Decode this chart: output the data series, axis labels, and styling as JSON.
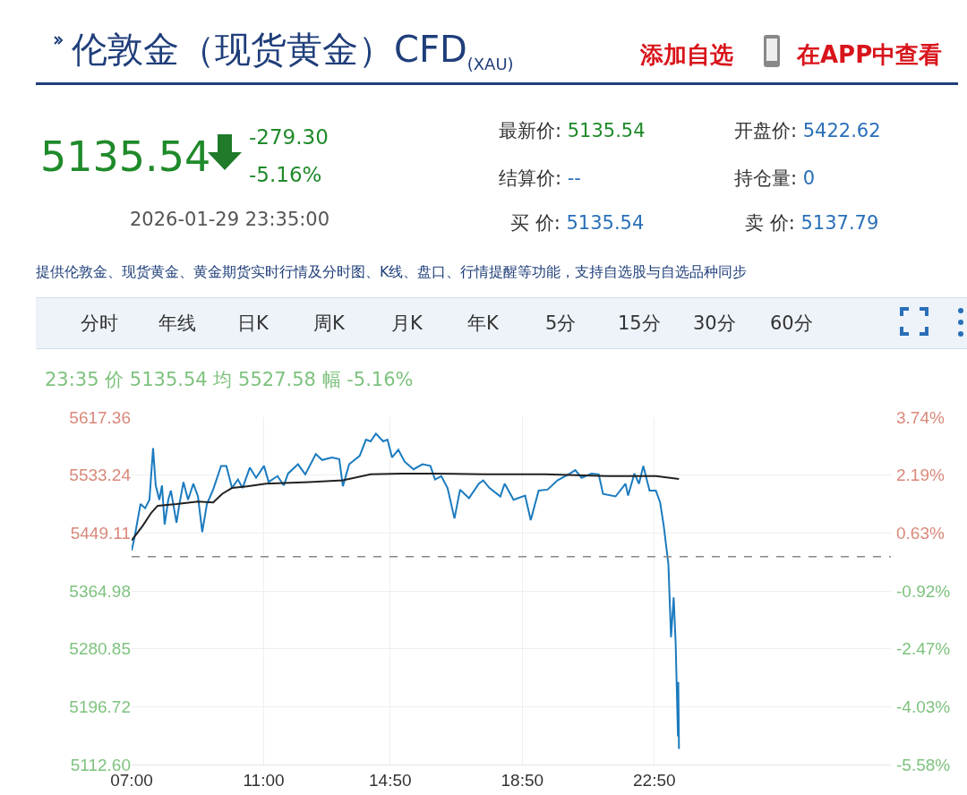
{
  "chart_data": {
    "type": "line",
    "title": "伦敦金（现货黄金）CFD$_{(XAU)}$",
    "annotations": [
      "添加自选",
      "在APP中查看",
      "5135.54",
      "-279.30",
      "-5.16%",
      "2026-01-29 23:35:00",
      "最新价: 5135.54",
      "开盘价: 5422.62",
      "结算价: --",
      "持仓量: 0",
      "买  价: 5135.54",
      "卖  价: 5137.79",
      "提供伦敦金、现货黄金、黄金期货实时行情及分时图、K线、盘口、行情提醒等功能，支持自选股与自选品种同步",
      "分时",
      "年线",
      "日K",
      "周K",
      "月K",
      "年K",
      "5分",
      "15分",
      "30分",
      "60分",
      "23:35 价 5135.54 均 5527.58 幅 -5.16%"
    ],
    "series": [
      {
        "color": "#1a7bbf",
        "x": [
          7.0,
          7.08,
          7.27,
          7.41,
          7.54,
          7.65,
          7.73,
          7.84,
          7.92,
          8.0,
          8.11,
          8.19,
          8.36,
          8.44,
          8.57,
          8.71,
          8.87,
          9.01,
          9.14,
          9.28,
          9.47,
          9.71,
          9.87,
          10.04,
          10.22,
          10.36,
          10.58,
          10.77,
          11.01,
          11.15,
          11.42,
          11.61,
          11.74,
          12.04,
          12.26,
          12.58,
          12.77,
          13.07,
          13.29,
          13.4,
          13.59,
          13.91,
          14.1,
          14.24,
          14.4,
          14.62,
          14.75,
          14.89,
          15.08,
          15.27,
          15.54,
          15.81,
          16.05,
          16.19,
          16.38,
          16.57,
          16.78,
          16.95,
          17.22,
          17.52,
          17.65,
          17.84,
          18.17,
          18.3,
          18.57,
          18.92,
          19.09,
          19.33,
          19.6,
          19.9,
          20.28,
          20.44,
          20.63,
          20.93,
          21.15,
          21.28,
          21.66,
          21.96,
          22.04,
          22.23,
          22.37,
          22.5,
          22.69,
          22.88,
          23.01,
          23.12,
          23.26,
          23.34,
          23.42,
          23.48,
          23.55,
          23.56,
          23.58
        ],
        "values": [
          5423.4,
          5440.6,
          5491.1,
          5485.0,
          5497.3,
          5572.4,
          5518.2,
          5497.3,
          5518.2,
          5461.6,
          5497.3,
          5510.8,
          5464.0,
          5488.7,
          5523.2,
          5497.3,
          5520.7,
          5502.2,
          5450.5,
          5491.1,
          5512.1,
          5546.6,
          5546.6,
          5514.5,
          5526.9,
          5514.5,
          5544.1,
          5529.3,
          5546.6,
          5523.2,
          5531.8,
          5518.2,
          5535.5,
          5549.0,
          5534.3,
          5563.8,
          5555.2,
          5558.9,
          5556.4,
          5517.0,
          5549.0,
          5561.4,
          5584.8,
          5582.3,
          5593.4,
          5582.3,
          5584.8,
          5558.9,
          5570.0,
          5552.7,
          5541.6,
          5549.0,
          5546.6,
          5526.9,
          5531.8,
          5514.5,
          5470.2,
          5512.1,
          5499.8,
          5520.7,
          5525.6,
          5514.5,
          5502.2,
          5520.7,
          5497.3,
          5503.5,
          5467.7,
          5510.8,
          5512.1,
          5525.6,
          5535.5,
          5540.4,
          5529.3,
          5535.5,
          5534.3,
          5505.9,
          5502.2,
          5520.7,
          5503.5,
          5535.5,
          5520.7,
          5546.6,
          5510.8,
          5510.8,
          5493.6,
          5459.1,
          5403.7,
          5297.7,
          5355.6,
          5289.1,
          5153.6,
          5232.5,
          5135.5
        ]
      },
      {
        "color": "#222222",
        "x": [
          7.0,
          7.33,
          7.6,
          7.79,
          8.36,
          9.01,
          9.47,
          9.74,
          10.04,
          10.5,
          11.07,
          12.37,
          13.4,
          14.24,
          15.16,
          16.11,
          17.68,
          19.52,
          21.39,
          22.88,
          23.58
        ],
        "values": [
          5438.2,
          5459.1,
          5478.8,
          5488.7,
          5491.1,
          5494.8,
          5493.6,
          5505.9,
          5514.5,
          5517.0,
          5520.7,
          5523.2,
          5525.6,
          5534.3,
          5535.5,
          5535.5,
          5534.3,
          5534.3,
          5531.8,
          5531.8,
          5527.6
        ]
      }
    ],
    "xlim": [
      7,
      30
    ],
    "xticks": [
      {
        "value": 7,
        "label": "07:00"
      },
      {
        "value": 11,
        "label": "11:00"
      },
      {
        "value": 14.8333,
        "label": "14:50"
      },
      {
        "value": 18.8333,
        "label": "18:50"
      },
      {
        "value": 22.8333,
        "label": "22:50"
      }
    ],
    "ylim": [
      5112.6,
      5617.36
    ],
    "yticks": [
      5617.36,
      5533.24,
      5449.11,
      5364.98,
      5280.85,
      5196.72,
      {
        "value": 5112.6,
        "label": "5112.60"
      }
    ],
    "y2lim": [
      -5.58,
      3.74
    ],
    "y2ticks": [
      {
        "value": 3.74,
        "label": "3.74%"
      },
      {
        "value": 2.19,
        "label": "2.19%"
      },
      {
        "value": 0.63,
        "label": "0.63%"
      },
      {
        "value": -0.92,
        "label": "-0.92%"
      },
      {
        "value": -2.47,
        "label": "-2.47%"
      },
      {
        "value": -4.03,
        "label": "-4.03%"
      },
      {
        "value": -5.58,
        "label": "-5.58%"
      }
    ],
    "ref_lines": [
      {
        "axis": "y",
        "value": 5414.84,
        "color": "#888888",
        "line_style": "dashed"
      }
    ],
    "grid": true,
    "marker": "none",
    "line_style": "solid"
  }
}
